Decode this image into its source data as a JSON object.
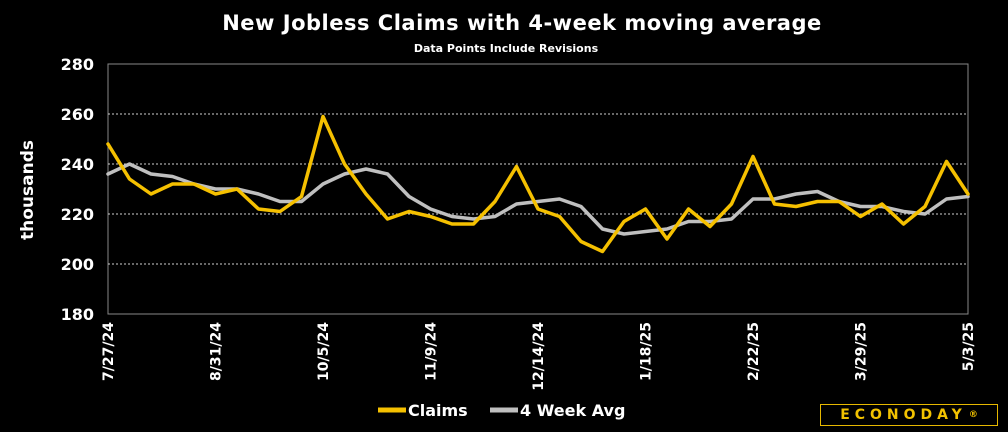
{
  "chart_data": {
    "type": "line",
    "title": "New Jobless Claims with 4-week moving average",
    "subtitle": "Data Points Include Revisions",
    "ylabel": "thousands",
    "ylim": [
      180,
      280
    ],
    "yticks": [
      180,
      200,
      220,
      240,
      260,
      280
    ],
    "grid": true,
    "legend_placement": "bottom-center",
    "x": [
      "7/27/24",
      "8/3/24",
      "8/10/24",
      "8/17/24",
      "8/24/24",
      "8/31/24",
      "9/7/24",
      "9/14/24",
      "9/21/24",
      "9/28/24",
      "10/5/24",
      "10/12/24",
      "10/19/24",
      "10/26/24",
      "11/2/24",
      "11/9/24",
      "11/16/24",
      "11/23/24",
      "11/30/24",
      "12/7/24",
      "12/14/24",
      "12/21/24",
      "12/28/24",
      "1/4/25",
      "1/11/25",
      "1/18/25",
      "1/25/25",
      "2/1/25",
      "2/8/25",
      "2/15/25",
      "2/22/25",
      "3/1/25",
      "3/8/25",
      "3/15/25",
      "3/22/25",
      "3/29/25",
      "4/5/25",
      "4/12/25",
      "4/19/25",
      "4/26/25",
      "5/3/25"
    ],
    "xtick_labels": [
      "7/27/24",
      "8/31/24",
      "10/5/24",
      "11/9/24",
      "12/14/24",
      "1/18/25",
      "2/22/25",
      "3/29/25",
      "5/3/25"
    ],
    "series": [
      {
        "name": "Claims",
        "color": "#f5c000",
        "values": [
          248,
          234,
          228,
          232,
          232,
          228,
          230,
          222,
          221,
          227,
          259,
          240,
          228,
          218,
          221,
          219,
          216,
          216,
          225,
          239,
          222,
          219,
          209,
          205,
          217,
          222,
          210,
          222,
          215,
          224,
          243,
          224,
          223,
          225,
          225,
          219,
          224,
          216,
          223,
          241,
          228
        ]
      },
      {
        "name": "4 Week Avg",
        "color": "#bfbfbf",
        "values": [
          236,
          240,
          236,
          235,
          232,
          230,
          230,
          228,
          225,
          225,
          232,
          236,
          238,
          236,
          227,
          222,
          219,
          218,
          219,
          224,
          225,
          226,
          223,
          214,
          212,
          213,
          214,
          217,
          217,
          218,
          226,
          226,
          228,
          229,
          225,
          223,
          223,
          221,
          220,
          226,
          227
        ]
      }
    ]
  },
  "logo": {
    "text": "ECONODAY",
    "mark": "®"
  }
}
